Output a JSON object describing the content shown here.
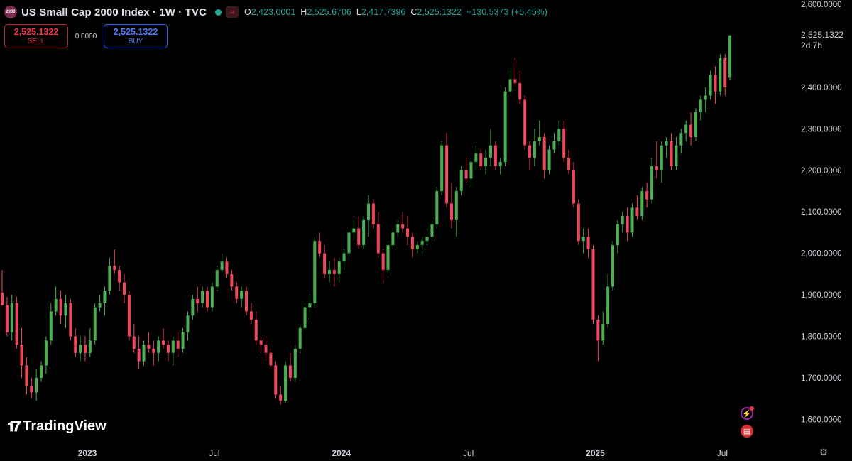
{
  "header": {
    "symbol_badge": "2000",
    "title": "US Small Cap 2000 Index · 1W · TVC",
    "open_label": "O",
    "open_value": "2,423.0001",
    "high_label": "H",
    "high_value": "2,525.6706",
    "low_label": "L",
    "low_value": "2,417.7396",
    "close_label": "C",
    "close_value": "2,525.1322",
    "change": "+130.5373 (+5.45%)"
  },
  "trade": {
    "sell_price": "2,525.1322",
    "sell_label": "SELL",
    "spread": "0.0000",
    "buy_price": "2,525.1322",
    "buy_label": "BUY"
  },
  "last_price": {
    "value": "2,525.1322",
    "countdown": "2d 7h"
  },
  "branding": {
    "logo_text": "TradingView"
  },
  "colors": {
    "up": "#26a69a",
    "down": "#f23645",
    "background": "#000000",
    "up_candle": "#4caf50",
    "down_candle": "#f0485a"
  },
  "icons": [
    "flash-event-icon",
    "us-flag-icon",
    "settings-icon",
    "wave-icon"
  ],
  "chart_data": {
    "type": "candlestick",
    "title": "US Small Cap 2000 Index · 1W · TVC",
    "interval": "1W",
    "ylim": [
      1575,
      2600
    ],
    "y_ticks": [
      "2,600.0000",
      "2,400.0000",
      "2,300.0000",
      "2,200.0000",
      "2,100.0000",
      "2,000.0000",
      "1,900.0000",
      "1,800.0000",
      "1,700.0000",
      "1,600.0000"
    ],
    "x_ticks": [
      {
        "label": "2023",
        "week": 0,
        "bold": true
      },
      {
        "label": "Jul",
        "week": 26,
        "bold": false
      },
      {
        "label": "2024",
        "week": 52,
        "bold": true
      },
      {
        "label": "Jul",
        "week": 78,
        "bold": false
      },
      {
        "label": "2025",
        "week": 104,
        "bold": true
      },
      {
        "label": "Jul",
        "week": 130,
        "bold": false
      }
    ],
    "grid": false,
    "candles": [
      [
        1905,
        1960,
        1875,
        1875
      ],
      [
        1875,
        1895,
        1800,
        1810
      ],
      [
        1810,
        1900,
        1790,
        1880
      ],
      [
        1880,
        1895,
        1770,
        1780
      ],
      [
        1780,
        1820,
        1700,
        1730
      ],
      [
        1730,
        1750,
        1660,
        1680
      ],
      [
        1680,
        1700,
        1650,
        1665
      ],
      [
        1665,
        1720,
        1645,
        1700
      ],
      [
        1700,
        1740,
        1690,
        1730
      ],
      [
        1730,
        1800,
        1710,
        1790
      ],
      [
        1790,
        1880,
        1780,
        1860
      ],
      [
        1860,
        1920,
        1850,
        1890
      ],
      [
        1890,
        1910,
        1830,
        1850
      ],
      [
        1850,
        1900,
        1820,
        1880
      ],
      [
        1880,
        1890,
        1790,
        1800
      ],
      [
        1800,
        1820,
        1750,
        1760
      ],
      [
        1760,
        1800,
        1740,
        1780
      ],
      [
        1780,
        1800,
        1740,
        1760
      ],
      [
        1760,
        1820,
        1750,
        1790
      ],
      [
        1790,
        1880,
        1780,
        1870
      ],
      [
        1870,
        1900,
        1860,
        1880
      ],
      [
        1880,
        1920,
        1850,
        1910
      ],
      [
        1910,
        1990,
        1900,
        1970
      ],
      [
        1970,
        2010,
        1950,
        1960
      ],
      [
        1960,
        1970,
        1910,
        1930
      ],
      [
        1930,
        1950,
        1880,
        1900
      ],
      [
        1900,
        1910,
        1790,
        1800
      ],
      [
        1800,
        1830,
        1760,
        1770
      ],
      [
        1770,
        1800,
        1720,
        1740
      ],
      [
        1740,
        1790,
        1730,
        1780
      ],
      [
        1780,
        1810,
        1760,
        1770
      ],
      [
        1770,
        1790,
        1730,
        1760
      ],
      [
        1760,
        1800,
        1740,
        1790
      ],
      [
        1790,
        1820,
        1770,
        1780
      ],
      [
        1780,
        1790,
        1740,
        1760
      ],
      [
        1760,
        1800,
        1730,
        1790
      ],
      [
        1790,
        1810,
        1750,
        1770
      ],
      [
        1770,
        1820,
        1760,
        1810
      ],
      [
        1810,
        1860,
        1790,
        1850
      ],
      [
        1850,
        1900,
        1840,
        1890
      ],
      [
        1890,
        1920,
        1860,
        1880
      ],
      [
        1880,
        1920,
        1870,
        1910
      ],
      [
        1910,
        1920,
        1860,
        1870
      ],
      [
        1870,
        1930,
        1860,
        1920
      ],
      [
        1920,
        1970,
        1910,
        1960
      ],
      [
        1960,
        2000,
        1950,
        1980
      ],
      [
        1980,
        1990,
        1940,
        1950
      ],
      [
        1950,
        1960,
        1910,
        1920
      ],
      [
        1920,
        1930,
        1880,
        1890
      ],
      [
        1890,
        1920,
        1870,
        1910
      ],
      [
        1910,
        1920,
        1850,
        1860
      ],
      [
        1860,
        1880,
        1830,
        1840
      ],
      [
        1840,
        1860,
        1780,
        1790
      ],
      [
        1790,
        1800,
        1760,
        1780
      ],
      [
        1780,
        1800,
        1740,
        1760
      ],
      [
        1760,
        1770,
        1720,
        1730
      ],
      [
        1730,
        1740,
        1650,
        1660
      ],
      [
        1660,
        1680,
        1635,
        1645
      ],
      [
        1645,
        1740,
        1640,
        1730
      ],
      [
        1730,
        1760,
        1690,
        1700
      ],
      [
        1700,
        1780,
        1690,
        1770
      ],
      [
        1770,
        1830,
        1760,
        1820
      ],
      [
        1820,
        1880,
        1810,
        1870
      ],
      [
        1870,
        1900,
        1840,
        1880
      ],
      [
        1880,
        2040,
        1870,
        2030
      ],
      [
        2030,
        2050,
        1990,
        2000
      ],
      [
        2000,
        2020,
        1940,
        1950
      ],
      [
        1950,
        1980,
        1930,
        1960
      ],
      [
        1960,
        1990,
        1920,
        1950
      ],
      [
        1950,
        1990,
        1930,
        1980
      ],
      [
        1980,
        2010,
        1960,
        2000
      ],
      [
        2000,
        2060,
        1990,
        2050
      ],
      [
        2050,
        2080,
        2030,
        2060
      ],
      [
        2060,
        2090,
        2010,
        2020
      ],
      [
        2020,
        2090,
        2010,
        2080
      ],
      [
        2080,
        2140,
        2040,
        2120
      ],
      [
        2120,
        2130,
        2060,
        2070
      ],
      [
        2070,
        2100,
        1990,
        2000
      ],
      [
        2000,
        2010,
        1930,
        1960
      ],
      [
        1960,
        2030,
        1950,
        2020
      ],
      [
        2020,
        2060,
        2010,
        2050
      ],
      [
        2050,
        2080,
        2040,
        2070
      ],
      [
        2070,
        2100,
        2050,
        2060
      ],
      [
        2060,
        2090,
        2020,
        2040
      ],
      [
        2040,
        2050,
        1990,
        2010
      ],
      [
        2010,
        2030,
        2000,
        2020
      ],
      [
        2020,
        2040,
        2000,
        2030
      ],
      [
        2030,
        2060,
        2020,
        2040
      ],
      [
        2040,
        2080,
        2030,
        2070
      ],
      [
        2070,
        2160,
        2060,
        2150
      ],
      [
        2150,
        2270,
        2140,
        2260
      ],
      [
        2260,
        2290,
        2110,
        2120
      ],
      [
        2120,
        2170,
        2060,
        2080
      ],
      [
        2080,
        2160,
        2040,
        2150
      ],
      [
        2150,
        2210,
        2140,
        2200
      ],
      [
        2200,
        2230,
        2170,
        2180
      ],
      [
        2180,
        2230,
        2160,
        2220
      ],
      [
        2220,
        2260,
        2200,
        2240
      ],
      [
        2240,
        2250,
        2200,
        2210
      ],
      [
        2210,
        2250,
        2190,
        2230
      ],
      [
        2230,
        2300,
        2210,
        2260
      ],
      [
        2260,
        2270,
        2200,
        2210
      ],
      [
        2210,
        2230,
        2190,
        2220
      ],
      [
        2220,
        2400,
        2210,
        2390
      ],
      [
        2390,
        2440,
        2380,
        2420
      ],
      [
        2420,
        2470,
        2400,
        2410
      ],
      [
        2410,
        2440,
        2360,
        2370
      ],
      [
        2370,
        2380,
        2250,
        2260
      ],
      [
        2260,
        2270,
        2200,
        2230
      ],
      [
        2230,
        2300,
        2210,
        2270
      ],
      [
        2270,
        2320,
        2260,
        2280
      ],
      [
        2280,
        2290,
        2180,
        2200
      ],
      [
        2200,
        2260,
        2190,
        2250
      ],
      [
        2250,
        2290,
        2240,
        2270
      ],
      [
        2270,
        2320,
        2260,
        2300
      ],
      [
        2300,
        2320,
        2220,
        2230
      ],
      [
        2230,
        2250,
        2190,
        2200
      ],
      [
        2200,
        2220,
        2110,
        2120
      ],
      [
        2120,
        2130,
        2020,
        2030
      ],
      [
        2030,
        2060,
        2000,
        2040
      ],
      [
        2040,
        2060,
        1990,
        2010
      ],
      [
        2010,
        2020,
        1830,
        1840
      ],
      [
        1840,
        1850,
        1740,
        1790
      ],
      [
        1790,
        1860,
        1780,
        1830
      ],
      [
        1830,
        1950,
        1820,
        1920
      ],
      [
        1920,
        2030,
        1910,
        2020
      ],
      [
        2020,
        2080,
        2000,
        2070
      ],
      [
        2070,
        2100,
        2050,
        2090
      ],
      [
        2090,
        2110,
        2030,
        2050
      ],
      [
        2050,
        2120,
        2040,
        2110
      ],
      [
        2110,
        2140,
        2080,
        2090
      ],
      [
        2090,
        2160,
        2080,
        2150
      ],
      [
        2150,
        2170,
        2110,
        2130
      ],
      [
        2130,
        2230,
        2120,
        2210
      ],
      [
        2210,
        2270,
        2180,
        2200
      ],
      [
        2200,
        2270,
        2170,
        2260
      ],
      [
        2260,
        2280,
        2230,
        2270
      ],
      [
        2270,
        2290,
        2200,
        2210
      ],
      [
        2210,
        2280,
        2200,
        2260
      ],
      [
        2260,
        2300,
        2240,
        2290
      ],
      [
        2290,
        2320,
        2270,
        2310
      ],
      [
        2310,
        2340,
        2260,
        2280
      ],
      [
        2280,
        2350,
        2270,
        2340
      ],
      [
        2340,
        2380,
        2320,
        2370
      ],
      [
        2370,
        2400,
        2340,
        2380
      ],
      [
        2380,
        2440,
        2370,
        2430
      ],
      [
        2430,
        2450,
        2360,
        2390
      ],
      [
        2390,
        2480,
        2380,
        2470
      ],
      [
        2470,
        2480,
        2380,
        2400
      ],
      [
        2423,
        2525.67,
        2417.74,
        2525.13
      ]
    ]
  }
}
